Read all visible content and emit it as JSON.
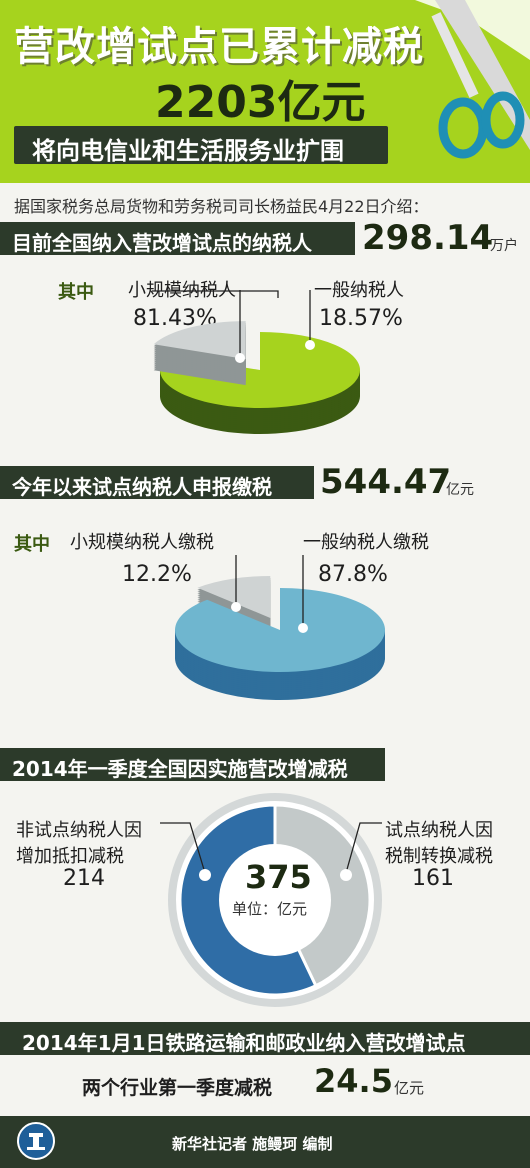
{
  "header": {
    "title_line1": "营改增试点已累计减税",
    "title_amount": "2203亿元",
    "subtitle": "将向电信业和生活服务业扩围"
  },
  "intro": "据国家税务总局货物和劳务税司司长杨益民4月22日介绍：",
  "section1": {
    "label": "目前全国纳入营改增试点的纳税人",
    "value": "298.14",
    "unit": "万户",
    "qizhong": "其中",
    "chart_title_left": "小规模纳税人",
    "chart_pct_left": "81.43%",
    "chart_title_right": "一般纳税人",
    "chart_pct_right": "18.57%"
  },
  "section2": {
    "label": "今年以来试点纳税人申报缴税",
    "value": "544.47",
    "unit": "亿元",
    "qizhong": "其中",
    "chart_title_left": "小规模纳税人缴税",
    "chart_pct_left": "12.2%",
    "chart_title_right": "一般纳税人缴税",
    "chart_pct_right": "87.8%"
  },
  "section3": {
    "label": "2014年一季度全国因实施营改增减税",
    "left_line1": "非试点纳税人因",
    "left_line2": "增加抵扣减税",
    "left_value": "214",
    "right_line1": "试点纳税人因",
    "right_line2": "税制转换减税",
    "right_value": "161",
    "center_value": "375",
    "center_unit": "单位：亿元"
  },
  "section4": {
    "label": "2014年1月1日铁路运输和邮政业纳入营改增试点",
    "text": "两个行业第一季度减税",
    "value": "24.5",
    "unit": "亿元"
  },
  "footer": {
    "credit": "新华社记者 施鳗珂 编制"
  },
  "colors": {
    "green": "#a6d31e",
    "green_dark": "#3b5a12",
    "gray": "#cfd3d3",
    "gray_dark": "#8f9696",
    "blue_light": "#6fb6cf",
    "blue_dark": "#2f6f9c",
    "donut_blue": "#2f6da6",
    "donut_gray": "#c3c9c9",
    "banner": "#2c3a2a"
  },
  "chart_data": [
    {
      "type": "pie",
      "categories": [
        "小规模纳税人",
        "一般纳税人"
      ],
      "values": [
        81.43,
        18.57
      ]
    },
    {
      "type": "pie",
      "categories": [
        "小规模纳税人缴税",
        "一般纳税人缴税"
      ],
      "values": [
        12.2,
        87.8
      ]
    },
    {
      "type": "pie",
      "categories": [
        "非试点纳税人因增加抵扣减税",
        "试点纳税人因税制转换减税"
      ],
      "values": [
        214,
        161
      ]
    }
  ]
}
